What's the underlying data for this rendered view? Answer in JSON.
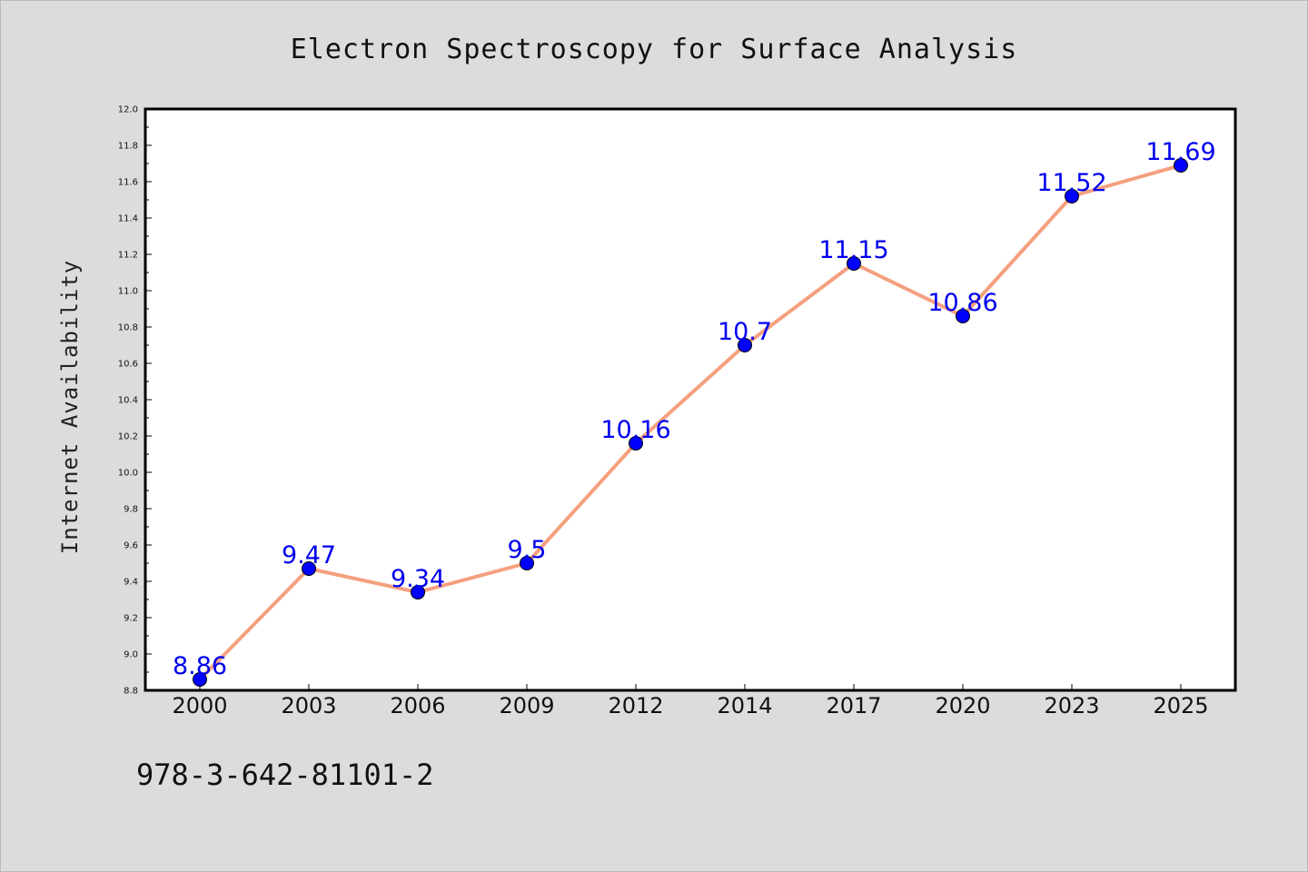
{
  "chart_data": {
    "type": "line",
    "title": "Electron Spectroscopy for Surface Analysis",
    "xlabel": "",
    "ylabel": "Internet Availability",
    "categories": [
      "2000",
      "2003",
      "2006",
      "2009",
      "2012",
      "2014",
      "2017",
      "2020",
      "2023",
      "2025"
    ],
    "series": [
      {
        "values": [
          8.86,
          9.47,
          9.34,
          9.5,
          10.16,
          10.7,
          11.15,
          10.86,
          11.52,
          11.69
        ],
        "line_color": "#f4a07f",
        "marker_color": "#0000ff",
        "label_color": "#0000ee"
      }
    ],
    "ylim": [
      8.8,
      12.0
    ],
    "yticks": [
      "8.8",
      "9.0",
      "9.2",
      "9.4",
      "9.6",
      "9.8",
      "10.0",
      "10.2",
      "10.4",
      "10.6",
      "10.8",
      "11.0",
      "11.2",
      "11.4",
      "11.6",
      "11.8",
      "12.0"
    ],
    "grid": false,
    "legend": "none",
    "data_labels": true
  },
  "footer": {
    "isbn": "978-3-642-81101-2"
  },
  "colors": {
    "background": "#dcdcdc",
    "plot_background": "#ffffff"
  }
}
